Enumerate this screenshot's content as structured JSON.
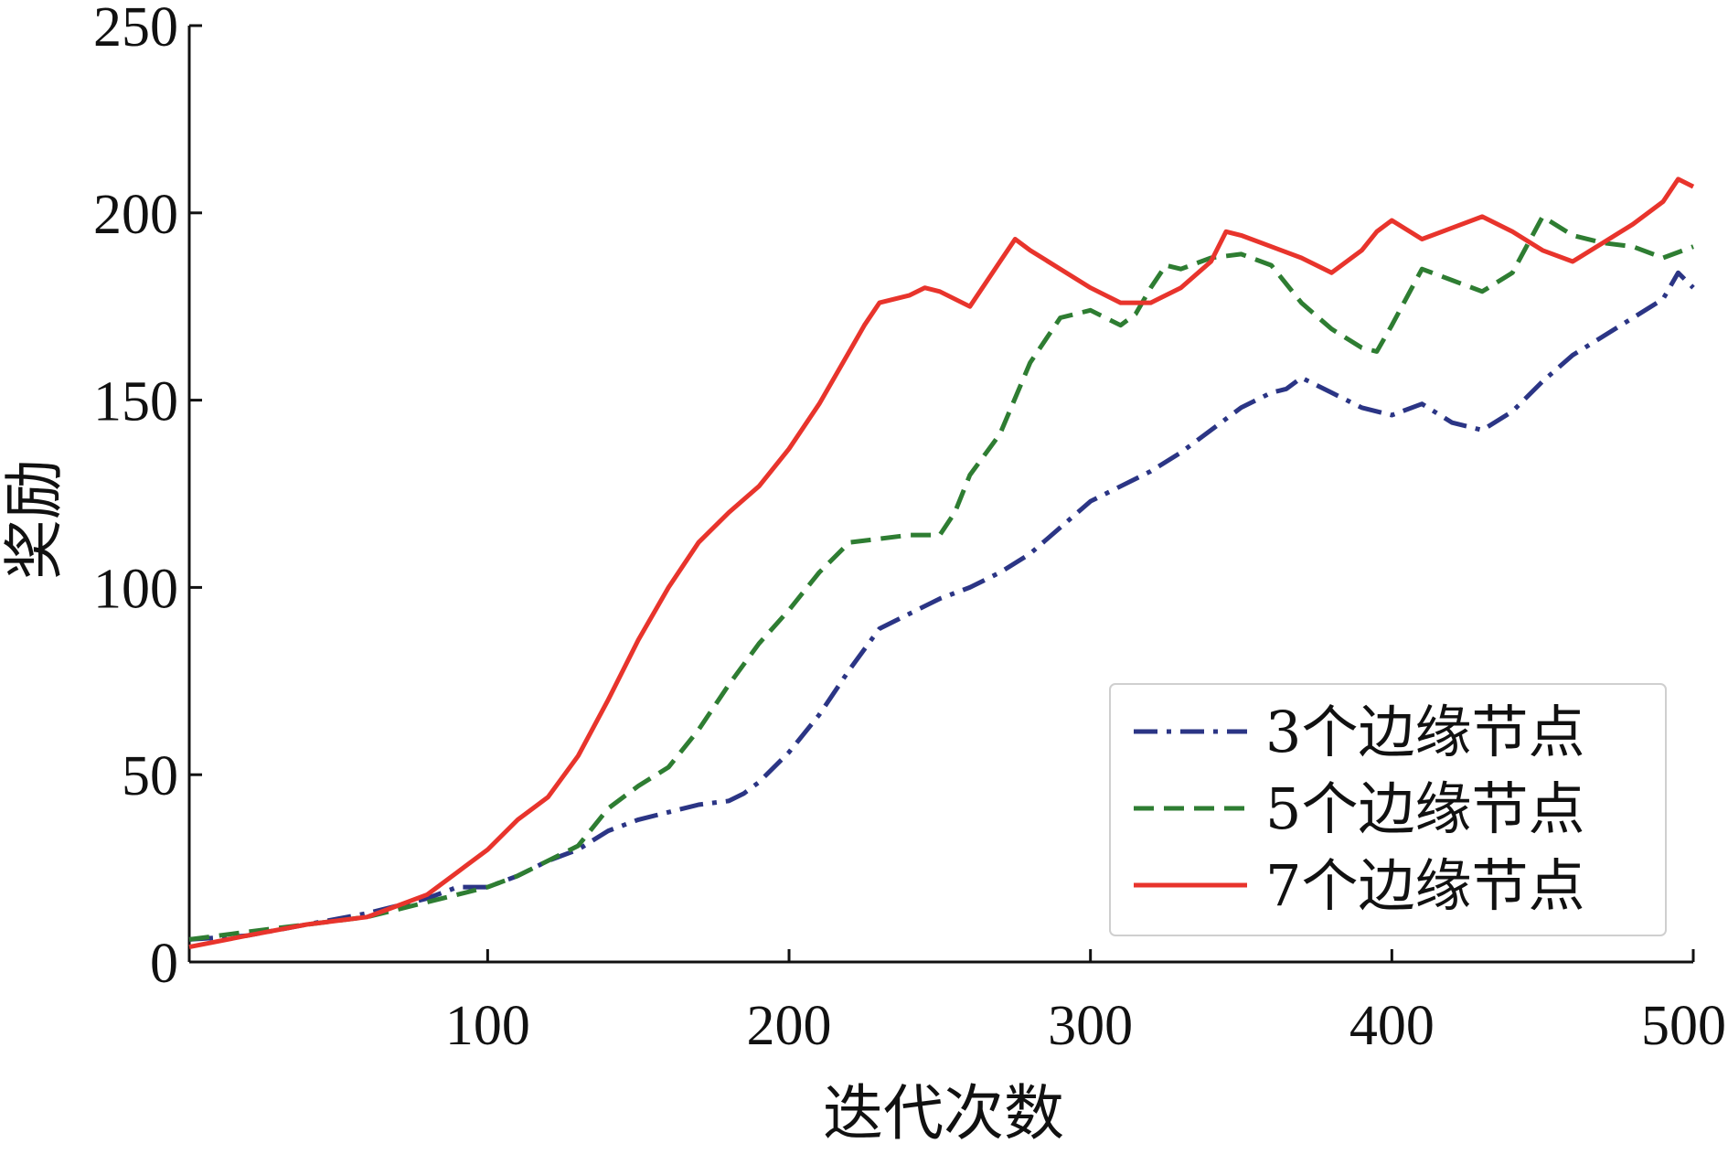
{
  "chart_data": {
    "type": "line",
    "title": "",
    "xlabel": "迭代次数",
    "ylabel": "奖励",
    "xlim": [
      1,
      500
    ],
    "ylim": [
      0,
      250
    ],
    "x_ticks": [
      100,
      200,
      300,
      400,
      500
    ],
    "y_ticks": [
      0,
      50,
      100,
      150,
      200,
      250
    ],
    "grid": false,
    "legend_position": "lower-right",
    "series": [
      {
        "name": "3个边缘节点",
        "color": "#2b3585",
        "dash": "dash-dot",
        "x": [
          1,
          20,
          40,
          60,
          80,
          90,
          100,
          110,
          120,
          130,
          140,
          150,
          160,
          170,
          180,
          185,
          190,
          200,
          210,
          220,
          230,
          240,
          250,
          260,
          270,
          280,
          290,
          300,
          310,
          320,
          330,
          340,
          350,
          360,
          365,
          370,
          380,
          390,
          400,
          410,
          420,
          430,
          440,
          450,
          460,
          470,
          480,
          490,
          495,
          500
        ],
        "y": [
          6,
          7,
          10,
          13,
          17,
          20,
          20,
          23,
          27,
          30,
          35,
          38,
          40,
          42,
          43,
          45,
          48,
          56,
          66,
          78,
          89,
          93,
          97,
          100,
          104,
          109,
          116,
          123,
          127,
          131,
          136,
          142,
          148,
          152,
          153,
          156,
          152,
          148,
          146,
          149,
          144,
          142,
          147,
          155,
          162,
          167,
          172,
          177,
          184,
          180
        ]
      },
      {
        "name": "5个边缘节点",
        "color": "#2e7d32",
        "dash": "dashed",
        "x": [
          1,
          20,
          40,
          60,
          80,
          90,
          100,
          110,
          120,
          130,
          140,
          150,
          160,
          170,
          180,
          190,
          200,
          210,
          220,
          230,
          240,
          250,
          255,
          260,
          270,
          280,
          290,
          300,
          310,
          315,
          320,
          325,
          330,
          340,
          350,
          360,
          370,
          380,
          390,
          395,
          400,
          410,
          420,
          430,
          440,
          450,
          460,
          470,
          480,
          490,
          500
        ],
        "y": [
          6,
          8,
          10,
          12,
          16,
          18,
          20,
          23,
          27,
          31,
          41,
          47,
          52,
          62,
          74,
          85,
          94,
          104,
          112,
          113,
          114,
          114,
          120,
          130,
          141,
          160,
          172,
          174,
          170,
          173,
          180,
          186,
          185,
          188,
          189,
          186,
          176,
          169,
          164,
          163,
          170,
          185,
          182,
          179,
          184,
          199,
          194,
          192,
          191,
          188,
          191
        ]
      },
      {
        "name": "7个边缘节点",
        "color": "#e8342c",
        "dash": "solid",
        "x": [
          1,
          20,
          40,
          60,
          70,
          80,
          90,
          100,
          110,
          120,
          130,
          140,
          150,
          160,
          170,
          180,
          190,
          200,
          210,
          220,
          225,
          230,
          240,
          245,
          250,
          260,
          270,
          275,
          280,
          290,
          300,
          310,
          320,
          330,
          340,
          345,
          350,
          360,
          370,
          380,
          390,
          395,
          400,
          410,
          420,
          430,
          440,
          450,
          460,
          470,
          480,
          490,
          495,
          500
        ],
        "y": [
          4,
          7,
          10,
          12,
          15,
          18,
          24,
          30,
          38,
          44,
          55,
          70,
          86,
          100,
          112,
          120,
          127,
          137,
          149,
          163,
          170,
          176,
          178,
          180,
          179,
          175,
          187,
          193,
          190,
          185,
          180,
          176,
          176,
          180,
          187,
          195,
          194,
          191,
          188,
          184,
          190,
          195,
          198,
          193,
          196,
          199,
          195,
          190,
          187,
          192,
          197,
          203,
          209,
          207
        ]
      }
    ]
  }
}
